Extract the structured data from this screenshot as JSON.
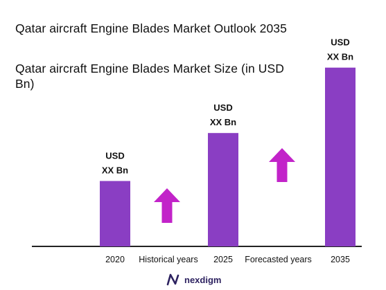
{
  "title_line1": "Qatar aircraft Engine Blades Market Outlook 2035",
  "title_line2": "Qatar aircraft Engine Blades Market Size (in USD Bn)",
  "brand": {
    "name": "nexdigm",
    "color": "#2d2260"
  },
  "colors": {
    "bar": "#8a3ec3",
    "arrow": "#c223c9",
    "axis": "#222222"
  },
  "chart_data": {
    "type": "bar",
    "categories": [
      "2020",
      "2025",
      "2035"
    ],
    "values": [
      30,
      52,
      82
    ],
    "value_labels": [
      [
        "USD",
        "XX Bn"
      ],
      [
        "USD",
        "XX Bn"
      ],
      [
        "USD",
        "XX Bn"
      ]
    ],
    "ylim": [
      0,
      100
    ],
    "period_labels": [
      "Historical years",
      "Forecasted years"
    ],
    "growth_arrows": 2,
    "grid": false,
    "legend": "none"
  }
}
